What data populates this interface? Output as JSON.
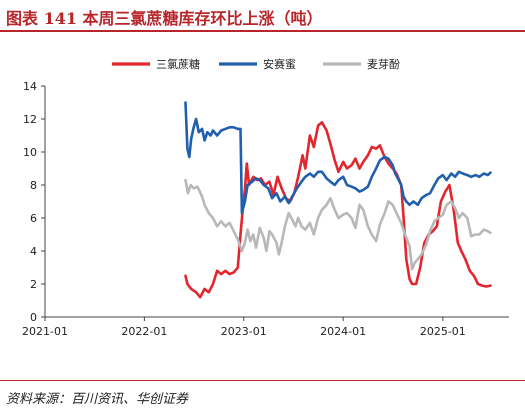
{
  "header": {
    "title": "图表  141    本周三氯蔗糖库存环比上涨（吨）"
  },
  "footer": {
    "source": "资料来源：百川资讯、华创证券"
  },
  "chart_data": {
    "type": "line",
    "x_axis": {
      "type": "date",
      "range": [
        "2021-01-01",
        "2025-09-01"
      ],
      "ticks": [
        "2021-01",
        "2022-01",
        "2023-01",
        "2024-01",
        "2025-01"
      ]
    },
    "y_axis": {
      "range": [
        0,
        14
      ],
      "ticks": [
        "0",
        "2",
        "4",
        "6",
        "8",
        "10",
        "12",
        "14"
      ]
    },
    "grid": false,
    "legend_position": "top",
    "series": [
      {
        "name": "三氯蔗糖",
        "color": "#e3262d",
        "points": [
          [
            "2022-06-01",
            2.5
          ],
          [
            "2022-06-08",
            2.0
          ],
          [
            "2022-06-22",
            1.7
          ],
          [
            "2022-07-10",
            1.5
          ],
          [
            "2022-07-25",
            1.2
          ],
          [
            "2022-08-10",
            1.7
          ],
          [
            "2022-08-25",
            1.5
          ],
          [
            "2022-09-10",
            2.0
          ],
          [
            "2022-09-25",
            2.8
          ],
          [
            "2022-10-10",
            2.6
          ],
          [
            "2022-10-25",
            2.8
          ],
          [
            "2022-11-10",
            2.6
          ],
          [
            "2022-11-25",
            2.7
          ],
          [
            "2022-12-10",
            3.0
          ],
          [
            "2022-12-20",
            5.0
          ],
          [
            "2022-12-28",
            6.5
          ],
          [
            "2023-01-05",
            7.7
          ],
          [
            "2023-01-12",
            9.3
          ],
          [
            "2023-01-20",
            8.0
          ],
          [
            "2023-02-05",
            8.5
          ],
          [
            "2023-02-20",
            8.3
          ],
          [
            "2023-03-05",
            8.4
          ],
          [
            "2023-03-20",
            8.0
          ],
          [
            "2023-04-05",
            8.2
          ],
          [
            "2023-04-20",
            7.4
          ],
          [
            "2023-05-05",
            8.5
          ],
          [
            "2023-05-20",
            7.8
          ],
          [
            "2023-06-05",
            7.2
          ],
          [
            "2023-06-20",
            7.0
          ],
          [
            "2023-07-05",
            7.5
          ],
          [
            "2023-07-20",
            8.5
          ],
          [
            "2023-08-05",
            9.8
          ],
          [
            "2023-08-15",
            9.0
          ],
          [
            "2023-09-01",
            11.0
          ],
          [
            "2023-09-15",
            10.3
          ],
          [
            "2023-10-01",
            11.6
          ],
          [
            "2023-10-15",
            11.8
          ],
          [
            "2023-11-01",
            11.3
          ],
          [
            "2023-11-15",
            10.5
          ],
          [
            "2023-12-01",
            9.5
          ],
          [
            "2023-12-15",
            8.8
          ],
          [
            "2024-01-01",
            9.4
          ],
          [
            "2024-01-15",
            9.0
          ],
          [
            "2024-02-01",
            9.2
          ],
          [
            "2024-02-15",
            9.6
          ],
          [
            "2024-03-01",
            9.0
          ],
          [
            "2024-03-15",
            9.4
          ],
          [
            "2024-04-01",
            9.8
          ],
          [
            "2024-04-15",
            10.3
          ],
          [
            "2024-05-01",
            10.2
          ],
          [
            "2024-05-15",
            10.4
          ],
          [
            "2024-06-01",
            9.7
          ],
          [
            "2024-06-15",
            9.3
          ],
          [
            "2024-07-01",
            9.0
          ],
          [
            "2024-07-15",
            8.7
          ],
          [
            "2024-08-01",
            8.0
          ],
          [
            "2024-08-10",
            6.0
          ],
          [
            "2024-08-20",
            3.5
          ],
          [
            "2024-09-01",
            2.3
          ],
          [
            "2024-09-10",
            2.0
          ],
          [
            "2024-09-25",
            2.0
          ],
          [
            "2024-10-10",
            3.0
          ],
          [
            "2024-10-25",
            4.5
          ],
          [
            "2024-11-10",
            5.0
          ],
          [
            "2024-11-25",
            5.2
          ],
          [
            "2024-12-10",
            5.5
          ],
          [
            "2024-12-25",
            7.0
          ],
          [
            "2025-01-10",
            7.6
          ],
          [
            "2025-01-25",
            8.0
          ],
          [
            "2025-02-10",
            6.5
          ],
          [
            "2025-02-25",
            4.5
          ],
          [
            "2025-03-10",
            4.0
          ],
          [
            "2025-03-25",
            3.5
          ],
          [
            "2025-04-10",
            2.8
          ],
          [
            "2025-04-25",
            2.5
          ],
          [
            "2025-05-10",
            2.0
          ],
          [
            "2025-05-25",
            1.9
          ],
          [
            "2025-06-10",
            1.85
          ],
          [
            "2025-06-25",
            1.9
          ]
        ]
      },
      {
        "name": "安赛蜜",
        "color": "#1f5fae",
        "points": [
          [
            "2022-06-01",
            13.0
          ],
          [
            "2022-06-08",
            10.2
          ],
          [
            "2022-06-15",
            9.7
          ],
          [
            "2022-06-22",
            10.8
          ],
          [
            "2022-07-01",
            11.5
          ],
          [
            "2022-07-10",
            12.0
          ],
          [
            "2022-07-20",
            11.2
          ],
          [
            "2022-08-01",
            11.4
          ],
          [
            "2022-08-10",
            10.7
          ],
          [
            "2022-08-20",
            11.2
          ],
          [
            "2022-09-01",
            11.0
          ],
          [
            "2022-09-10",
            11.3
          ],
          [
            "2022-09-25",
            11.0
          ],
          [
            "2022-10-10",
            11.3
          ],
          [
            "2022-10-25",
            11.4
          ],
          [
            "2022-11-10",
            11.5
          ],
          [
            "2022-11-25",
            11.5
          ],
          [
            "2022-12-10",
            11.4
          ],
          [
            "2022-12-20",
            11.4
          ],
          [
            "2022-12-25",
            6.3
          ],
          [
            "2023-01-05",
            7.0
          ],
          [
            "2023-01-15",
            8.0
          ],
          [
            "2023-02-01",
            8.2
          ],
          [
            "2023-02-15",
            8.4
          ],
          [
            "2023-03-01",
            8.3
          ],
          [
            "2023-03-15",
            8.0
          ],
          [
            "2023-04-01",
            7.8
          ],
          [
            "2023-04-15",
            7.2
          ],
          [
            "2023-05-01",
            7.5
          ],
          [
            "2023-05-15",
            7.0
          ],
          [
            "2023-06-01",
            7.3
          ],
          [
            "2023-06-15",
            6.9
          ],
          [
            "2023-07-01",
            7.4
          ],
          [
            "2023-07-15",
            7.8
          ],
          [
            "2023-08-01",
            8.2
          ],
          [
            "2023-08-15",
            8.5
          ],
          [
            "2023-09-01",
            8.7
          ],
          [
            "2023-09-15",
            8.5
          ],
          [
            "2023-10-01",
            8.8
          ],
          [
            "2023-10-15",
            8.8
          ],
          [
            "2023-11-01",
            8.4
          ],
          [
            "2023-11-15",
            8.2
          ],
          [
            "2023-12-01",
            8.0
          ],
          [
            "2023-12-15",
            8.3
          ],
          [
            "2024-01-01",
            8.5
          ],
          [
            "2024-01-15",
            8.0
          ],
          [
            "2024-02-01",
            7.9
          ],
          [
            "2024-02-15",
            7.8
          ],
          [
            "2024-03-01",
            7.6
          ],
          [
            "2024-03-15",
            7.7
          ],
          [
            "2024-04-01",
            7.9
          ],
          [
            "2024-04-15",
            8.5
          ],
          [
            "2024-05-01",
            9.0
          ],
          [
            "2024-05-15",
            9.5
          ],
          [
            "2024-06-01",
            9.7
          ],
          [
            "2024-06-15",
            9.6
          ],
          [
            "2024-07-01",
            9.2
          ],
          [
            "2024-07-10",
            8.7
          ],
          [
            "2024-07-20",
            8.4
          ],
          [
            "2024-08-01",
            8.0
          ],
          [
            "2024-08-10",
            7.3
          ],
          [
            "2024-08-20",
            7.0
          ],
          [
            "2024-09-01",
            6.8
          ],
          [
            "2024-09-15",
            7.0
          ],
          [
            "2024-10-01",
            6.8
          ],
          [
            "2024-10-15",
            7.2
          ],
          [
            "2024-11-01",
            7.4
          ],
          [
            "2024-11-15",
            7.5
          ],
          [
            "2024-12-01",
            8.0
          ],
          [
            "2024-12-15",
            8.4
          ],
          [
            "2025-01-01",
            8.6
          ],
          [
            "2025-01-15",
            8.3
          ],
          [
            "2025-02-01",
            8.7
          ],
          [
            "2025-02-15",
            8.5
          ],
          [
            "2025-03-01",
            8.8
          ],
          [
            "2025-03-15",
            8.7
          ],
          [
            "2025-04-01",
            8.6
          ],
          [
            "2025-04-15",
            8.5
          ],
          [
            "2025-05-01",
            8.6
          ],
          [
            "2025-05-15",
            8.5
          ],
          [
            "2025-06-01",
            8.7
          ],
          [
            "2025-06-15",
            8.6
          ],
          [
            "2025-06-25",
            8.75
          ]
        ]
      },
      {
        "name": "麦芽酚",
        "color": "#b8b8b8",
        "points": [
          [
            "2022-06-01",
            8.3
          ],
          [
            "2022-06-10",
            7.5
          ],
          [
            "2022-06-20",
            8.0
          ],
          [
            "2022-07-01",
            7.8
          ],
          [
            "2022-07-15",
            7.9
          ],
          [
            "2022-08-01",
            7.3
          ],
          [
            "2022-08-10",
            6.8
          ],
          [
            "2022-08-25",
            6.3
          ],
          [
            "2022-09-10",
            6.0
          ],
          [
            "2022-09-25",
            5.5
          ],
          [
            "2022-10-10",
            5.8
          ],
          [
            "2022-10-25",
            5.5
          ],
          [
            "2022-11-10",
            5.7
          ],
          [
            "2022-11-25",
            5.2
          ],
          [
            "2022-12-10",
            4.7
          ],
          [
            "2022-12-25",
            4.0
          ],
          [
            "2023-01-05",
            4.5
          ],
          [
            "2023-01-15",
            5.3
          ],
          [
            "2023-01-25",
            4.6
          ],
          [
            "2023-02-05",
            5.0
          ],
          [
            "2023-02-15",
            4.2
          ],
          [
            "2023-03-01",
            5.4
          ],
          [
            "2023-03-15",
            4.8
          ],
          [
            "2023-03-25",
            4.0
          ],
          [
            "2023-04-05",
            5.2
          ],
          [
            "2023-04-15",
            5.0
          ],
          [
            "2023-05-01",
            4.5
          ],
          [
            "2023-05-10",
            3.8
          ],
          [
            "2023-05-20",
            4.5
          ],
          [
            "2023-06-01",
            5.5
          ],
          [
            "2023-06-15",
            6.3
          ],
          [
            "2023-07-01",
            5.8
          ],
          [
            "2023-07-10",
            5.5
          ],
          [
            "2023-07-20",
            6.0
          ],
          [
            "2023-08-01",
            5.5
          ],
          [
            "2023-08-15",
            5.3
          ],
          [
            "2023-09-01",
            5.7
          ],
          [
            "2023-09-15",
            5.0
          ],
          [
            "2023-10-01",
            6.0
          ],
          [
            "2023-10-15",
            6.5
          ],
          [
            "2023-11-01",
            6.8
          ],
          [
            "2023-11-15",
            7.2
          ],
          [
            "2023-12-01",
            6.5
          ],
          [
            "2023-12-15",
            6.0
          ],
          [
            "2024-01-01",
            6.2
          ],
          [
            "2024-01-15",
            6.3
          ],
          [
            "2024-02-01",
            6.0
          ],
          [
            "2024-02-15",
            5.4
          ],
          [
            "2024-03-01",
            6.8
          ],
          [
            "2024-03-15",
            6.5
          ],
          [
            "2024-04-01",
            5.5
          ],
          [
            "2024-04-15",
            5.0
          ],
          [
            "2024-05-01",
            4.6
          ],
          [
            "2024-05-15",
            5.6
          ],
          [
            "2024-06-01",
            6.3
          ],
          [
            "2024-06-15",
            7.0
          ],
          [
            "2024-07-01",
            6.8
          ],
          [
            "2024-07-15",
            6.3
          ],
          [
            "2024-08-01",
            5.7
          ],
          [
            "2024-08-15",
            5.0
          ],
          [
            "2024-09-01",
            4.3
          ],
          [
            "2024-09-10",
            2.9
          ],
          [
            "2024-09-20",
            3.3
          ],
          [
            "2024-10-01",
            3.5
          ],
          [
            "2024-10-15",
            3.8
          ],
          [
            "2024-11-01",
            4.4
          ],
          [
            "2024-11-15",
            5.2
          ],
          [
            "2024-12-01",
            5.8
          ],
          [
            "2024-12-15",
            6.0
          ],
          [
            "2025-01-01",
            6.2
          ],
          [
            "2025-01-15",
            6.8
          ],
          [
            "2025-02-01",
            7.0
          ],
          [
            "2025-02-15",
            6.6
          ],
          [
            "2025-03-01",
            6.0
          ],
          [
            "2025-03-15",
            6.3
          ],
          [
            "2025-04-01",
            6.0
          ],
          [
            "2025-04-15",
            4.9
          ],
          [
            "2025-05-01",
            5.0
          ],
          [
            "2025-05-15",
            5.0
          ],
          [
            "2025-06-01",
            5.3
          ],
          [
            "2025-06-15",
            5.2
          ],
          [
            "2025-06-25",
            5.1
          ]
        ]
      }
    ]
  }
}
